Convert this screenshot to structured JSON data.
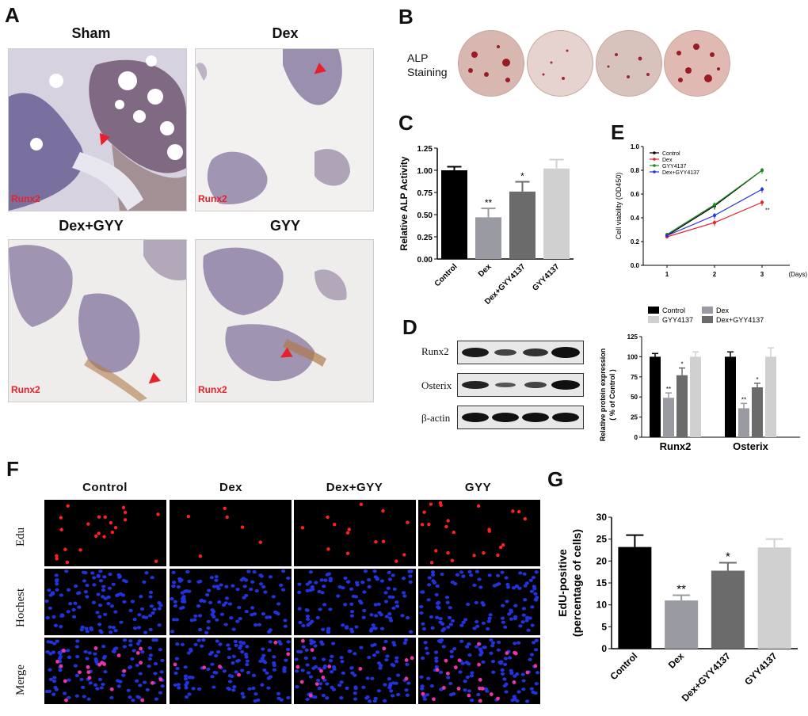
{
  "panels": {
    "a": "A",
    "b": "B",
    "c": "C",
    "d": "D",
    "e": "E",
    "f": "F",
    "g": "G"
  },
  "panel_a": {
    "titles": [
      "Sham",
      "Dex",
      "Dex+GYY",
      "GYY"
    ],
    "stain_label": "Runx2"
  },
  "panel_b": {
    "label_line1": "ALP",
    "label_line2": "Staining"
  },
  "panel_d": {
    "blot_labels": [
      "Runx2",
      "Osterix",
      "β-actin"
    ],
    "legend": [
      "Control",
      "Dex",
      "GYY4137",
      "Dex+GYY4137"
    ],
    "ylabel_line1": "Relative  protein expression",
    "ylabel_line2": "( % of Control )"
  },
  "panel_f": {
    "columns": [
      "Control",
      "Dex",
      "Dex+GYY",
      "GYY"
    ],
    "rows": [
      "Edu",
      "Hochest",
      "Merge"
    ]
  },
  "colors": {
    "black": "#000000",
    "mid_gray": "#9a9aa3",
    "dark_gray": "#6b6b6b",
    "light_gray": "#d0d0d0",
    "red_arrow": "#e8202a",
    "nucleus_blue": "#2233dd",
    "edu_red": "#ff2020"
  },
  "chart_data": [
    {
      "id": "C",
      "type": "bar",
      "categories": [
        "Control",
        "Dex",
        "Dex+GYY4137",
        "GYY4137"
      ],
      "values": [
        1.0,
        0.47,
        0.76,
        1.02
      ],
      "errors": [
        0.04,
        0.1,
        0.11,
        0.1
      ],
      "significance": [
        "",
        "**",
        "*",
        ""
      ],
      "ylabel": "Relative ALP Activity",
      "ylim": [
        0,
        1.25
      ],
      "yticks": [
        "0.00",
        "0.25",
        "0.50",
        "0.75",
        "1.00",
        "1.25"
      ]
    },
    {
      "id": "E",
      "type": "line",
      "x": [
        1,
        2,
        3
      ],
      "xlabel": "(Days)",
      "ylabel": "Cell viability (OD450)",
      "ylim": [
        0,
        1.0
      ],
      "yticks": [
        "0.0",
        "0.2",
        "0.4",
        "0.6",
        "0.8",
        "1.0"
      ],
      "xticks": [
        "1",
        "2",
        "3"
      ],
      "series": [
        {
          "name": "Control",
          "color": "#000000",
          "values": [
            0.25,
            0.5,
            0.8
          ]
        },
        {
          "name": "Dex",
          "color": "#e8202a",
          "values": [
            0.24,
            0.36,
            0.53
          ]
        },
        {
          "name": "GYY4137",
          "color": "#1f8a1f",
          "values": [
            0.26,
            0.51,
            0.8
          ]
        },
        {
          "name": "Dex+GYY4137",
          "color": "#2233dd",
          "values": [
            0.25,
            0.42,
            0.64
          ]
        }
      ],
      "significance": [
        "",
        "**",
        "",
        "*"
      ]
    },
    {
      "id": "D",
      "type": "bar",
      "categories": [
        "Runx2",
        "Osterix"
      ],
      "ylim": [
        0,
        125
      ],
      "yticks": [
        "0",
        "25",
        "50",
        "75",
        "100",
        "125"
      ],
      "series": [
        {
          "name": "Control",
          "color": "#000000",
          "values": [
            100,
            100
          ],
          "errors": [
            4,
            6
          ]
        },
        {
          "name": "Dex",
          "color": "#9a9aa3",
          "values": [
            49,
            36
          ],
          "errors": [
            6,
            6
          ],
          "sig": [
            "**",
            "**"
          ]
        },
        {
          "name": "Dex+GYY4137",
          "color": "#6b6b6b",
          "values": [
            77,
            62
          ],
          "errors": [
            9,
            5
          ],
          "sig": [
            "*",
            "*"
          ]
        },
        {
          "name": "GYY4137",
          "color": "#d0d0d0",
          "values": [
            100,
            100
          ],
          "errors": [
            6,
            11
          ]
        }
      ]
    },
    {
      "id": "G",
      "type": "bar",
      "categories": [
        "Control",
        "Dex",
        "Dex+GYY4137",
        "GYY4137"
      ],
      "values": [
        23.2,
        11.0,
        17.8,
        23.1
      ],
      "errors": [
        2.7,
        1.2,
        1.8,
        1.9
      ],
      "significance": [
        "",
        "**",
        "*",
        ""
      ],
      "ylabel_line1": "EdU-positive",
      "ylabel_line2": "(percentage of cells)",
      "ylim": [
        0,
        30
      ],
      "yticks": [
        "0",
        "5",
        "10",
        "15",
        "20",
        "25",
        "30"
      ]
    }
  ]
}
